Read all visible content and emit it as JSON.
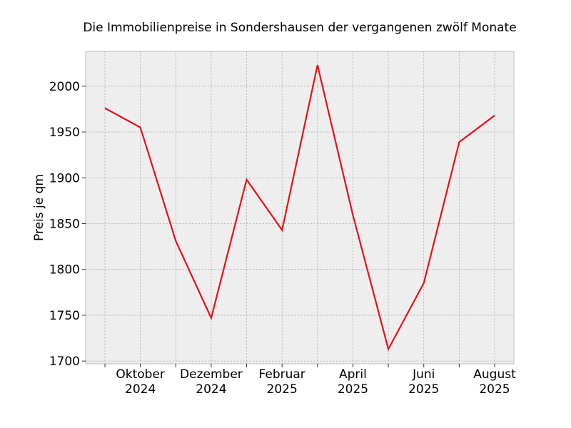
{
  "chart_data": {
    "type": "line",
    "title": "Die Immobilienpreise in Sondershausen der vergangenen zwölf Monate",
    "xlabel": "",
    "ylabel": "Preis je qm",
    "x": [
      "2024-09",
      "2024-10",
      "2024-11",
      "2024-12",
      "2025-01",
      "2025-02",
      "2025-03",
      "2025-04",
      "2025-05",
      "2025-06",
      "2025-07",
      "2025-08"
    ],
    "x_tick_labels": [
      {
        "x": "2024-10",
        "line1": "Oktober",
        "line2": "2024"
      },
      {
        "x": "2024-12",
        "line1": "Dezember",
        "line2": "2024"
      },
      {
        "x": "2025-02",
        "line1": "Februar",
        "line2": "2025"
      },
      {
        "x": "2025-04",
        "line1": "April",
        "line2": "2025"
      },
      {
        "x": "2025-06",
        "line1": "Juni",
        "line2": "2025"
      },
      {
        "x": "2025-08",
        "line1": "August",
        "line2": "2025"
      }
    ],
    "series": [
      {
        "values": [
          1976,
          1955,
          1831,
          1747,
          1898,
          1843,
          2023,
          1859,
          1713,
          1785,
          1939,
          1968
        ],
        "color": "#e3111b"
      }
    ],
    "ylim": [
      1697,
      2038
    ],
    "y_ticks": [
      "1700",
      "1750",
      "1800",
      "1850",
      "1900",
      "1950",
      "2000"
    ],
    "grid": true
  }
}
